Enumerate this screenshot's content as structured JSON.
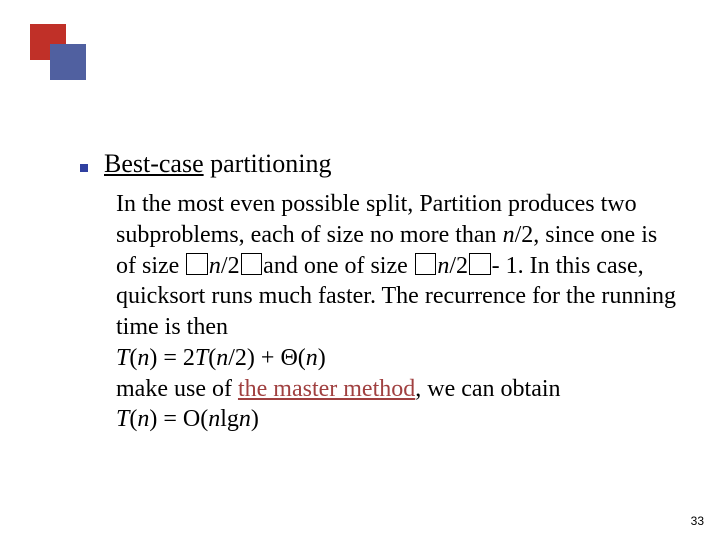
{
  "logo": {
    "red_color": "#c03028",
    "blue_color": "#5060a0"
  },
  "heading_underlined": "Best-case",
  "heading_rest": " partitioning",
  "body": {
    "line1a": "In the most even possible split, ",
    "line1_partition": "Partition",
    "line1b": " produces two subproblems, each of size no more than ",
    "n_over_2": "n",
    "slash2": "/2",
    "line1c": ", since one is of size ",
    "line1d": "and one of size ",
    "minus1": " 1. In this case, quicksort runs much faster. The recurrence for the running time is then",
    "rec1_a": "T",
    "rec1_b": "(",
    "rec1_c": "n",
    "rec1_d": ") = 2",
    "rec1_e": "T",
    "rec1_f": "(",
    "rec1_g": "n",
    "rec1_h": "/2) + Θ(",
    "rec1_i": "n",
    "rec1_j": ")",
    "line2a": "make use of ",
    "master": "the master method",
    "line2b": ", we can obtain",
    "rec2_a": "T",
    "rec2_b": "(",
    "rec2_c": "n",
    "rec2_d": ") = O(",
    "rec2_e": "n",
    "rec2_f": "lg",
    "rec2_g": "n",
    "rec2_h": ")"
  },
  "page_number": "33"
}
